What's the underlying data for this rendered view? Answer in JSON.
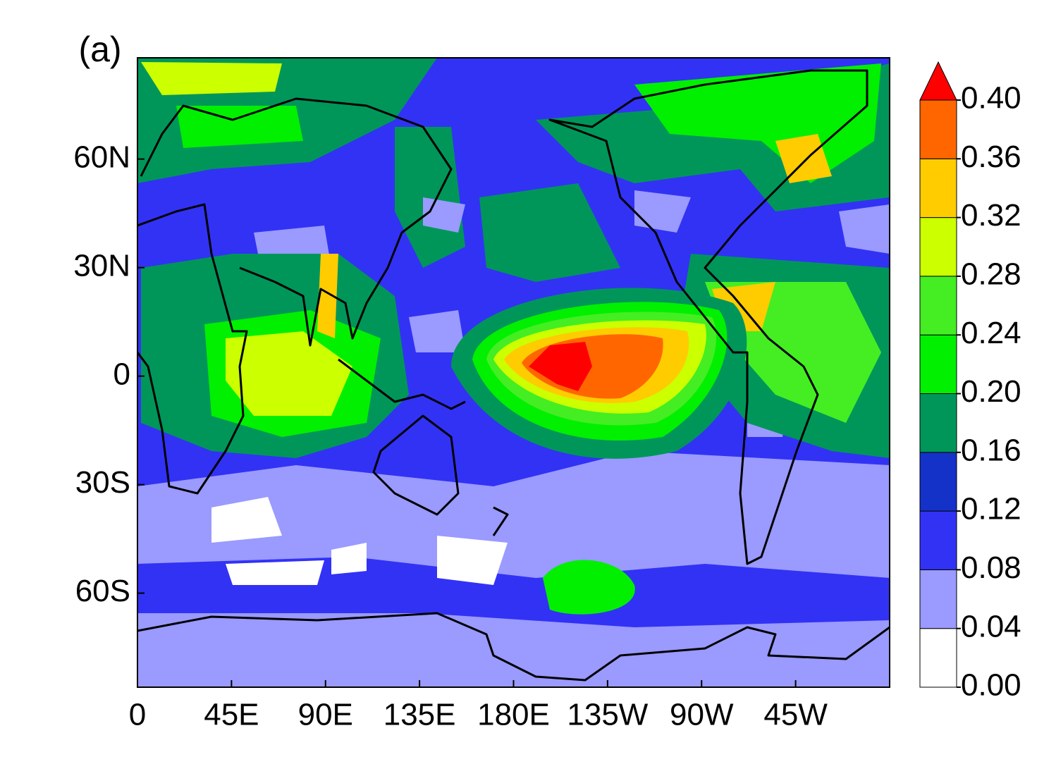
{
  "chart_data": {
    "type": "contour-map",
    "panel_label": "(a)",
    "xlim": [
      0,
      360
    ],
    "xticks": [
      0,
      {
        "value": 45,
        "label": "45E"
      },
      {
        "value": 90,
        "label": "90E"
      },
      {
        "value": 135,
        "label": "135E"
      },
      {
        "value": 180,
        "label": "180E"
      },
      {
        "value": 225,
        "label": "135W"
      },
      {
        "value": 270,
        "label": "90W"
      },
      {
        "value": 315,
        "label": "45W"
      }
    ],
    "ylim": [
      -86,
      88
    ],
    "yticks": [
      {
        "value": -60,
        "label": "60S"
      },
      {
        "value": -30,
        "label": "30S"
      },
      0,
      {
        "value": 30,
        "label": "30N"
      },
      {
        "value": 60,
        "label": "60N"
      }
    ],
    "colorbar": {
      "levels": [
        {
          "value": 0,
          "label": "0.00"
        },
        {
          "value": 0.04,
          "label": "0.04"
        },
        {
          "value": 0.08,
          "label": "0.08"
        },
        {
          "value": 0.12,
          "label": "0.12"
        },
        {
          "value": 0.16,
          "label": "0.16"
        },
        {
          "value": 0.2,
          "label": "0.20"
        },
        {
          "value": 0.24,
          "label": "0.24"
        },
        {
          "value": 0.28,
          "label": "0.28"
        },
        {
          "value": 0.32,
          "label": "0.32"
        },
        {
          "value": 0.36,
          "label": "0.36"
        },
        {
          "value": 0.4,
          "label": "0.40"
        }
      ],
      "colors": [
        "#ffffff",
        "#9a9aff",
        "#3232f5",
        "#1432c8",
        "#00965a",
        "#00f000",
        "#44ee22",
        "#ccff00",
        "#ffcc00",
        "#ff6600",
        "#ff0000"
      ],
      "extend": "max"
    }
  }
}
